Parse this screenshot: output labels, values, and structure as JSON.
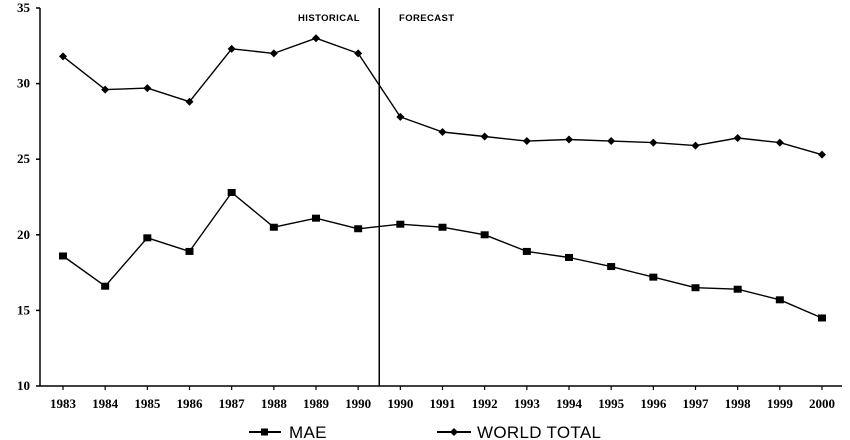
{
  "chart_data": {
    "type": "line",
    "title": "",
    "xlabel": "",
    "ylabel": "",
    "categories": [
      "1983",
      "1984",
      "1985",
      "1986",
      "1987",
      "1988",
      "1989",
      "1990",
      "1990",
      "1991",
      "1992",
      "1993",
      "1994",
      "1995",
      "1996",
      "1997",
      "1998",
      "1999",
      "2000"
    ],
    "ylim": [
      10,
      35
    ],
    "yticks": [
      "10",
      "15",
      "20",
      "25",
      "30",
      "35"
    ],
    "grid": false,
    "legend": "bottom",
    "regions": {
      "historical_label": "HISTORICAL",
      "forecast_label": "FORECAST"
    },
    "series": [
      {
        "name": "MAE",
        "marker": "square",
        "values": [
          18.6,
          16.6,
          19.8,
          18.9,
          22.8,
          20.5,
          21.1,
          20.4,
          20.7,
          20.5,
          20.0,
          18.9,
          18.5,
          17.9,
          17.2,
          16.5,
          16.4,
          15.7,
          14.5
        ]
      },
      {
        "name": "WORLD TOTAL",
        "marker": "diamond",
        "values": [
          31.8,
          29.6,
          29.7,
          28.8,
          32.3,
          32.0,
          33.0,
          32.0,
          27.8,
          26.8,
          26.5,
          26.2,
          26.3,
          26.2,
          26.1,
          25.9,
          26.4,
          26.1,
          25.3
        ]
      }
    ]
  }
}
